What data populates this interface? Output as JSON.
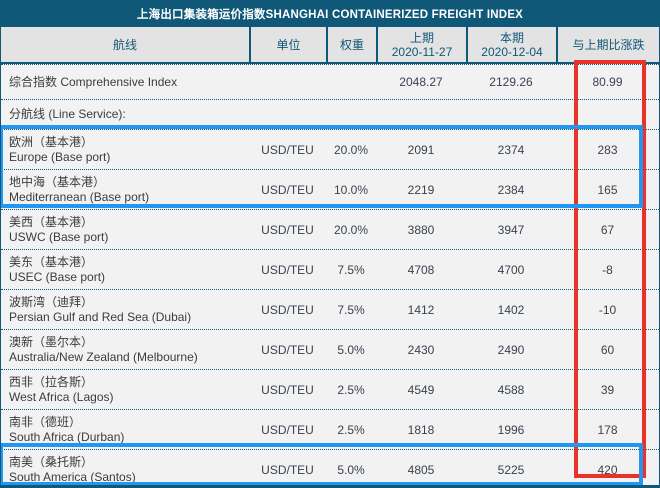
{
  "title": "上海出口集装箱运价指数SHANGHAI CONTAINERIZED FREIGHT INDEX",
  "colors": {
    "teal": "#105878",
    "header_bg": "#e3e3e3",
    "row_bg": "#f2f2f2",
    "highlight_red": "#e8322a",
    "highlight_blue": "#2196f3"
  },
  "table": {
    "header": {
      "route": "航线",
      "unit": "单位",
      "weight": "权重",
      "prev_label": "上期",
      "prev_date": "2020-11-27",
      "curr_label": "本期",
      "curr_date": "2020-12-04",
      "change": "与上期比涨跌"
    },
    "rows": [
      {
        "cn": "综合指数 Comprehensive Index",
        "en": "",
        "unit": "",
        "weight": "",
        "prev": "2048.27",
        "curr": "2129.26",
        "change": "80.99"
      },
      {
        "cn": "分航线 (Line Service):",
        "en": "",
        "unit": "",
        "weight": "",
        "prev": "",
        "curr": "",
        "change": ""
      },
      {
        "cn": "欧洲（基本港）",
        "en": "Europe (Base port)",
        "unit": "USD/TEU",
        "weight": "20.0%",
        "prev": "2091",
        "curr": "2374",
        "change": "283"
      },
      {
        "cn": "地中海（基本港）",
        "en": "Mediterranean (Base port)",
        "unit": "USD/TEU",
        "weight": "10.0%",
        "prev": "2219",
        "curr": "2384",
        "change": "165"
      },
      {
        "cn": "美西（基本港）",
        "en": "USWC (Base port)",
        "unit": "USD/TEU",
        "weight": "20.0%",
        "prev": "3880",
        "curr": "3947",
        "change": "67"
      },
      {
        "cn": "美东（基本港）",
        "en": "USEC (Base port)",
        "unit": "USD/TEU",
        "weight": "7.5%",
        "prev": "4708",
        "curr": "4700",
        "change": "-8"
      },
      {
        "cn": "波斯湾（迪拜）",
        "en": "Persian Gulf and Red Sea (Dubai)",
        "unit": "USD/TEU",
        "weight": "7.5%",
        "prev": "1412",
        "curr": "1402",
        "change": "-10"
      },
      {
        "cn": "澳新（墨尔本）",
        "en": "Australia/New Zealand (Melbourne)",
        "unit": "USD/TEU",
        "weight": "5.0%",
        "prev": "2430",
        "curr": "2490",
        "change": "60"
      },
      {
        "cn": "西非（拉各斯）",
        "en": "West Africa (Lagos)",
        "unit": "USD/TEU",
        "weight": "2.5%",
        "prev": "4549",
        "curr": "4588",
        "change": "39"
      },
      {
        "cn": "南非（德班）",
        "en": "South Africa (Durban)",
        "unit": "USD/TEU",
        "weight": "2.5%",
        "prev": "1818",
        "curr": "1996",
        "change": "178"
      },
      {
        "cn": "南美（桑托斯）",
        "en": "South America (Santos)",
        "unit": "USD/TEU",
        "weight": "5.0%",
        "prev": "4805",
        "curr": "5225",
        "change": "420"
      }
    ]
  },
  "chart_data": {
    "type": "table",
    "title": "上海出口集装箱运价指数SHANGHAI CONTAINERIZED FREIGHT INDEX",
    "columns": [
      "航线",
      "单位",
      "权重",
      "上期 2020-11-27",
      "本期 2020-12-04",
      "与上期比涨跌"
    ],
    "rows": [
      [
        "综合指数 Comprehensive Index",
        "",
        "",
        2048.27,
        2129.26,
        80.99
      ],
      [
        "分航线 (Line Service):",
        "",
        "",
        null,
        null,
        null
      ],
      [
        "欧洲（基本港）Europe (Base port)",
        "USD/TEU",
        "20.0%",
        2091,
        2374,
        283
      ],
      [
        "地中海（基本港）Mediterranean (Base port)",
        "USD/TEU",
        "10.0%",
        2219,
        2384,
        165
      ],
      [
        "美西（基本港）USWC (Base port)",
        "USD/TEU",
        "20.0%",
        3880,
        3947,
        67
      ],
      [
        "美东（基本港）USEC (Base port)",
        "USD/TEU",
        "7.5%",
        4708,
        4700,
        -8
      ],
      [
        "波斯湾（迪拜）Persian Gulf and Red Sea (Dubai)",
        "USD/TEU",
        "7.5%",
        1412,
        1402,
        -10
      ],
      [
        "澳新（墨尔本）Australia/New Zealand (Melbourne)",
        "USD/TEU",
        "5.0%",
        2430,
        2490,
        60
      ],
      [
        "西非（拉各斯）West Africa (Lagos)",
        "USD/TEU",
        "2.5%",
        4549,
        4588,
        39
      ],
      [
        "南非（德班）South Africa (Durban)",
        "USD/TEU",
        "2.5%",
        1818,
        1996,
        178
      ],
      [
        "南美（桑托斯）South America (Santos)",
        "USD/TEU",
        "5.0%",
        4805,
        5225,
        420
      ]
    ],
    "annotations": [
      "red rectangle highlighting 与上期比涨跌 (change) column values",
      "blue rectangle highlighting Europe and Mediterranean rows",
      "blue rectangle highlighting South America (Santos) row"
    ]
  }
}
